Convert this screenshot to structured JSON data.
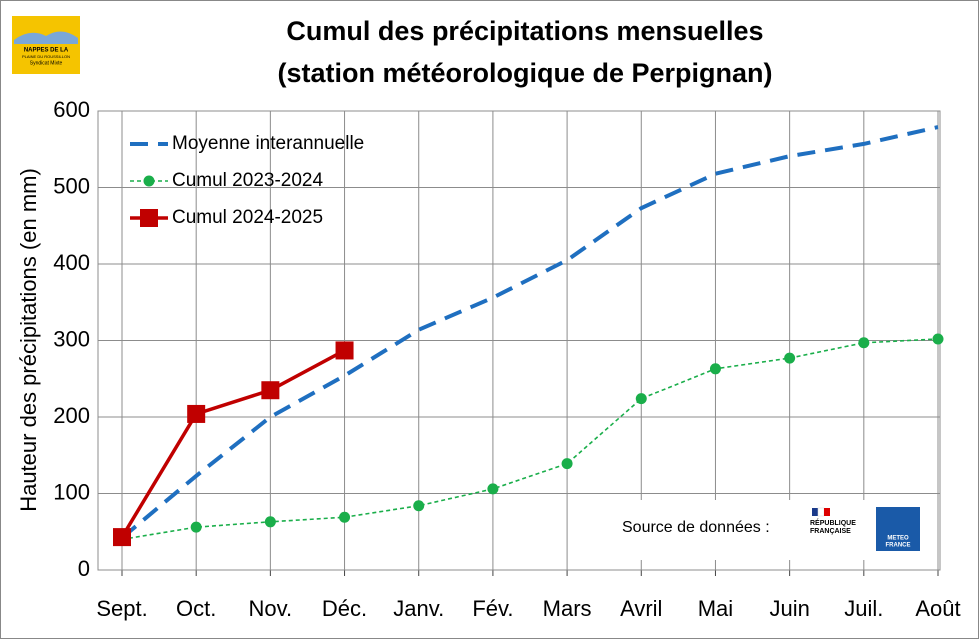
{
  "chart_data": {
    "type": "line",
    "title": [
      "Cumul des précipitations mensuelles",
      "(station météorologique de Perpignan)"
    ],
    "y_label": "Hauteur des précipitations (en mm)",
    "categories": [
      "Sept.",
      "Oct.",
      "Nov.",
      "Déc.",
      "Janv.",
      "Fév.",
      "Mars",
      "Avril",
      "Mai",
      "Juin",
      "Juil.",
      "Août"
    ],
    "series": [
      {
        "name": "Moyenne interannuelle",
        "color": "#1f6fc0",
        "style": "dashed",
        "marker": "none",
        "values": [
          42,
          123,
          200,
          254,
          314,
          356,
          405,
          473,
          518,
          541,
          557,
          579
        ]
      },
      {
        "name": "Cumul 2023-2024",
        "color": "#1aae4a",
        "style": "dotted",
        "marker": "circle",
        "values": [
          40,
          56,
          63,
          69,
          84,
          106,
          139,
          224,
          263,
          277,
          297,
          302
        ]
      },
      {
        "name": "Cumul 2024-2025",
        "color": "#c00000",
        "style": "solid",
        "marker": "square",
        "values": [
          43,
          204,
          235,
          287,
          null,
          null,
          null,
          null,
          null,
          null,
          null,
          null
        ]
      }
    ],
    "ylim": [
      0,
      600
    ],
    "yticks": [
      0,
      100,
      200,
      300,
      400,
      500,
      600
    ],
    "grid": true,
    "legend": "top-left",
    "source": "Source de données :"
  },
  "logos": {
    "nappes": [
      "NAPPES DE LA",
      "PLAINE DU ROUSSILLON",
      "Syndicat Mixte"
    ],
    "republique": [
      "RÉPUBLIQUE",
      "FRANÇAISE"
    ],
    "meteo": [
      "METEO",
      "FRANCE"
    ]
  }
}
